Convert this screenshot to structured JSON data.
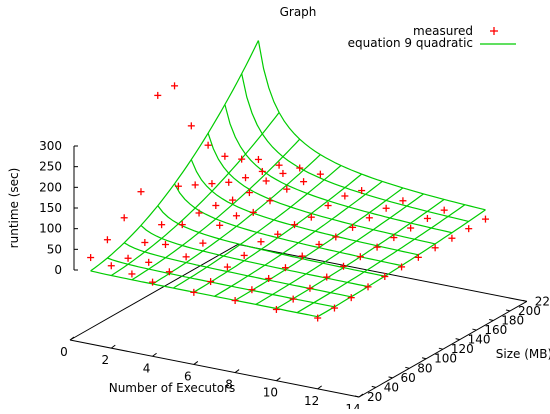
{
  "chart_data": {
    "type": "scatter",
    "title": "Graph",
    "xlabel": "Number of Executors",
    "ylabel": "Size (MB)",
    "zlabel": "runtime (sec)",
    "x_ticks": [
      "0",
      "2",
      "4",
      "6",
      "8",
      "10",
      "12",
      "14"
    ],
    "y_ticks": [
      "20",
      "40",
      "60",
      "80",
      "100",
      "120",
      "140",
      "160",
      "180",
      "200",
      "220"
    ],
    "z_ticks": [
      "0",
      "50",
      "100",
      "150",
      "200",
      "250",
      "300"
    ],
    "xlim": [
      0,
      14
    ],
    "ylim": [
      20,
      220
    ],
    "zlim": [
      0,
      300
    ],
    "legend_position": "top-right",
    "series": [
      {
        "name": "measured",
        "kind": "points",
        "marker": "+",
        "color": "#ff0000",
        "points": [
          [
            1,
            220,
            46
          ],
          [
            1,
            200,
            70
          ],
          [
            1,
            180,
            100
          ],
          [
            1,
            160,
            150
          ],
          [
            1,
            140,
            220
          ],
          [
            1,
            120,
            340
          ],
          [
            1,
            100,
            340
          ],
          [
            1,
            80,
            130
          ],
          [
            1,
            60,
            90
          ],
          [
            1,
            40,
            60
          ],
          [
            1,
            20,
            40
          ],
          [
            2,
            220,
            42
          ],
          [
            2,
            200,
            50
          ],
          [
            2,
            180,
            58
          ],
          [
            2,
            160,
            70
          ],
          [
            2,
            140,
            90
          ],
          [
            2,
            120,
            110
          ],
          [
            2,
            100,
            130
          ],
          [
            2,
            80,
            60
          ],
          [
            2,
            60,
            40
          ],
          [
            2,
            40,
            25
          ],
          [
            2,
            20,
            30
          ],
          [
            3,
            220,
            45
          ],
          [
            3,
            200,
            55
          ],
          [
            3,
            180,
            60
          ],
          [
            3,
            160,
            55
          ],
          [
            3,
            140,
            60
          ],
          [
            3,
            120,
            70
          ],
          [
            3,
            100,
            75
          ],
          [
            3,
            80,
            70
          ],
          [
            3,
            60,
            45
          ],
          [
            3,
            40,
            25
          ],
          [
            3,
            20,
            20
          ],
          [
            4,
            220,
            40
          ],
          [
            4,
            200,
            45
          ],
          [
            4,
            180,
            50
          ],
          [
            4,
            160,
            45
          ],
          [
            4,
            140,
            40
          ],
          [
            4,
            120,
            55
          ],
          [
            4,
            100,
            55
          ],
          [
            4,
            80,
            35
          ],
          [
            4,
            60,
            25
          ],
          [
            4,
            40,
            12
          ],
          [
            4,
            20,
            10
          ],
          [
            6,
            220,
            20
          ],
          [
            6,
            200,
            30
          ],
          [
            6,
            180,
            30
          ],
          [
            6,
            160,
            25
          ],
          [
            6,
            140,
            30
          ],
          [
            6,
            120,
            30
          ],
          [
            6,
            100,
            35
          ],
          [
            6,
            80,
            25
          ],
          [
            6,
            60,
            20
          ],
          [
            6,
            40,
            8
          ],
          [
            6,
            20,
            5
          ],
          [
            8,
            220,
            15
          ],
          [
            8,
            200,
            20
          ],
          [
            8,
            180,
            20
          ],
          [
            8,
            160,
            20
          ],
          [
            8,
            140,
            20
          ],
          [
            8,
            120,
            25
          ],
          [
            8,
            100,
            20
          ],
          [
            8,
            80,
            15
          ],
          [
            8,
            60,
            12
          ],
          [
            8,
            40,
            8
          ],
          [
            8,
            20,
            5
          ],
          [
            10,
            220,
            12
          ],
          [
            10,
            200,
            15
          ],
          [
            10,
            180,
            15
          ],
          [
            10,
            160,
            15
          ],
          [
            10,
            140,
            15
          ],
          [
            10,
            120,
            15
          ],
          [
            10,
            100,
            15
          ],
          [
            10,
            80,
            12
          ],
          [
            10,
            60,
            8
          ],
          [
            10,
            40,
            5
          ],
          [
            10,
            20,
            3
          ],
          [
            12,
            220,
            10
          ],
          [
            12,
            200,
            10
          ],
          [
            12,
            180,
            10
          ],
          [
            12,
            160,
            10
          ],
          [
            12,
            140,
            10
          ],
          [
            12,
            120,
            10
          ],
          [
            12,
            100,
            10
          ],
          [
            12,
            80,
            8
          ],
          [
            12,
            60,
            5
          ],
          [
            12,
            40,
            3
          ],
          [
            12,
            20,
            2
          ]
        ]
      },
      {
        "name": "equation 9 quadratic",
        "kind": "surface",
        "color": "#00cc00",
        "x_grid": [
          1,
          2,
          3,
          4,
          5,
          6,
          7,
          8,
          9,
          10,
          11,
          12
        ],
        "y_grid": [
          20,
          40,
          60,
          80,
          100,
          120,
          140,
          160,
          180,
          200,
          220
        ],
        "z_equation": "z = 5 + 0.0068 * y^2 / x"
      }
    ]
  }
}
